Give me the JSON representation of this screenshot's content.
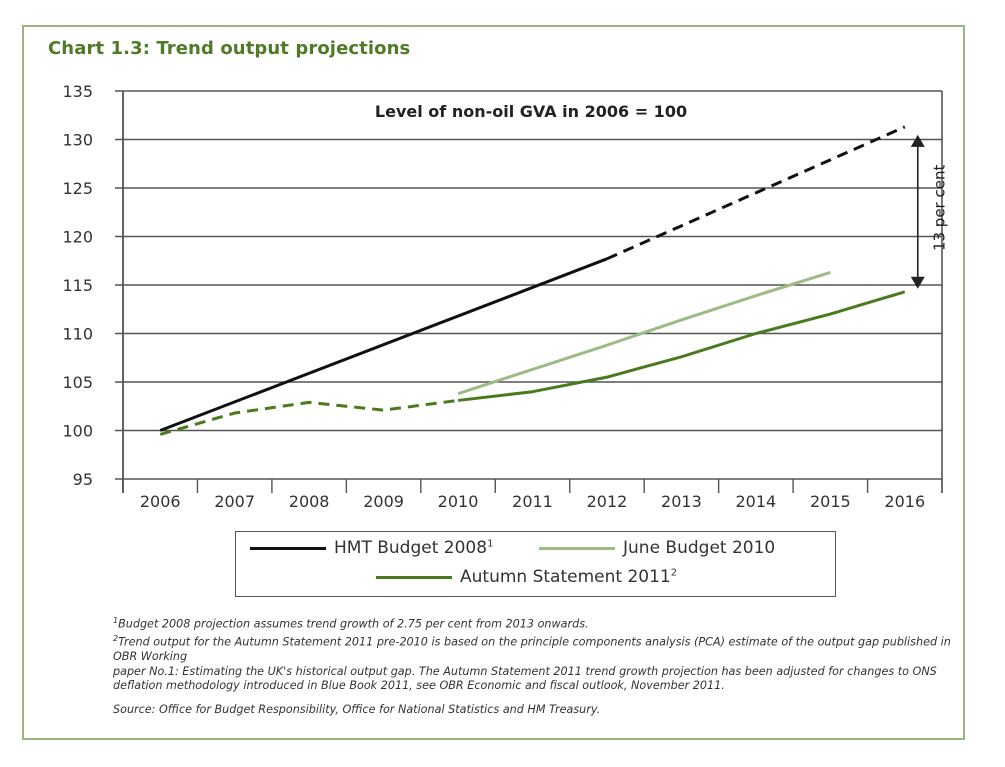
{
  "title": "Chart 1.3: Trend output projections",
  "chart_data": {
    "type": "line",
    "title": "Chart 1.3: Trend output projections",
    "annotation": "Level of non-oil GVA in 2006 = 100",
    "gap_annotation": "13 per cent",
    "xlabel": "",
    "ylabel": "",
    "x": [
      2006,
      2007,
      2008,
      2009,
      2010,
      2011,
      2012,
      2013,
      2014,
      2015,
      2016
    ],
    "x_tick_labels": [
      "2006",
      "2007",
      "2008",
      "2009",
      "2010",
      "2011",
      "2012",
      "2013",
      "2014",
      "2015",
      "2016"
    ],
    "y_tick_labels": [
      "95",
      "100",
      "105",
      "110",
      "115",
      "120",
      "125",
      "130",
      "135"
    ],
    "y_ticks": [
      95,
      100,
      105,
      110,
      115,
      120,
      125,
      130,
      135
    ],
    "ylim": [
      95,
      135
    ],
    "grid": true,
    "legend_position": "bottom",
    "series": [
      {
        "name": "HMT Budget 2008",
        "superscript": "1",
        "color": "#111111",
        "segments": [
          {
            "style": "solid",
            "x": [
              2006,
              2012
            ],
            "y": [
              100,
              117.7
            ]
          },
          {
            "style": "dashed",
            "x": [
              2012,
              2016
            ],
            "y": [
              117.7,
              131.3
            ]
          }
        ]
      },
      {
        "name": "June Budget 2010",
        "superscript": "",
        "color": "#9dbb84",
        "segments": [
          {
            "style": "solid",
            "x": [
              2010,
              2011,
              2012,
              2013,
              2014,
              2015
            ],
            "y": [
              103.8,
              106.3,
              108.8,
              111.4,
              113.9,
              116.3
            ]
          }
        ]
      },
      {
        "name": "Autumn Statement 2011",
        "superscript": "2",
        "color": "#4a7a1e",
        "segments": [
          {
            "style": "dashed",
            "x": [
              2006,
              2007,
              2008,
              2009,
              2010
            ],
            "y": [
              99.6,
              101.8,
              102.9,
              102.1,
              103.1
            ]
          },
          {
            "style": "solid",
            "x": [
              2010,
              2011,
              2012,
              2013,
              2014,
              2015,
              2016
            ],
            "y": [
              103.1,
              104.0,
              105.5,
              107.6,
              110.0,
              112.0,
              114.3
            ]
          }
        ]
      }
    ]
  },
  "legend": [
    {
      "label": "HMT Budget 2008",
      "sup": "1",
      "color": "#111111"
    },
    {
      "label": "June Budget 2010",
      "sup": "",
      "color": "#9dbb84"
    },
    {
      "label": "Autumn Statement 2011",
      "sup": "2",
      "color": "#4a7a1e"
    }
  ],
  "footnotes": {
    "note1_sup": "1",
    "note1": "Budget 2008 projection assumes trend growth of 2.75 per cent from 2013 onwards.",
    "note2_sup": "2",
    "note2a": "Trend output for the Autumn Statement 2011 pre-2010 is based on the principle components analysis (PCA) estimate of the output gap published in OBR Working",
    "note2b": "paper No.1: Estimating the UK's historical output gap. The Autumn Statement 2011 trend growth projection has been adjusted for changes to ONS deflation methodology introduced in Blue Book 2011, see OBR Economic and fiscal outlook, November 2011.",
    "source": "Source: Office for Budget Responsibility, Office for National Statistics and HM Treasury."
  }
}
